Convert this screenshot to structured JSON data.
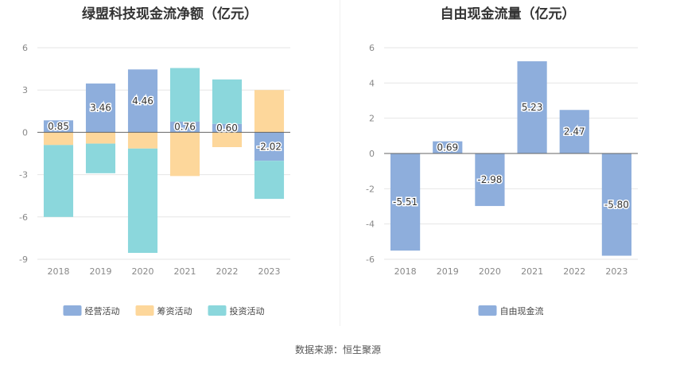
{
  "source": "数据来源：恒生聚源",
  "chart_data": [
    {
      "type": "bar",
      "stacked": true,
      "title": "绿盟科技现金流净额（亿元）",
      "categories": [
        "2018",
        "2019",
        "2020",
        "2021",
        "2022",
        "2023"
      ],
      "ylim": [
        -9,
        6
      ],
      "yticks": [
        6,
        3,
        0,
        -3,
        -6,
        -9
      ],
      "grid": true,
      "legend_position": "bottom",
      "series": [
        {
          "name": "经营活动",
          "color": "#8eaedc",
          "values": [
            0.85,
            3.46,
            4.46,
            0.76,
            0.6,
            -2.02
          ],
          "labels": [
            "0.85",
            "3.46",
            "4.46",
            "0.76",
            "0.60",
            "-2.02"
          ]
        },
        {
          "name": "筹资活动",
          "color": "#fdd79b",
          "values": [
            -0.9,
            -0.8,
            -1.15,
            -3.1,
            -1.05,
            3.0
          ]
        },
        {
          "name": "投资活动",
          "color": "#8bd7dc",
          "values": [
            -5.1,
            -2.1,
            -7.4,
            3.8,
            3.15,
            -2.7
          ]
        }
      ]
    },
    {
      "type": "bar",
      "title": "自由现金流量（亿元）",
      "categories": [
        "2018",
        "2019",
        "2020",
        "2021",
        "2022",
        "2023"
      ],
      "ylim": [
        -6,
        6
      ],
      "yticks": [
        6,
        4,
        2,
        0,
        -2,
        -4,
        -6
      ],
      "grid": true,
      "legend_position": "bottom",
      "series": [
        {
          "name": "自由现金流",
          "color": "#8eaedc",
          "values": [
            -5.51,
            0.69,
            -2.98,
            5.23,
            2.47,
            -5.8
          ],
          "labels": [
            "-5.51",
            "0.69",
            "-2.98",
            "5.23",
            "2.47",
            "-5.80"
          ]
        }
      ]
    }
  ]
}
